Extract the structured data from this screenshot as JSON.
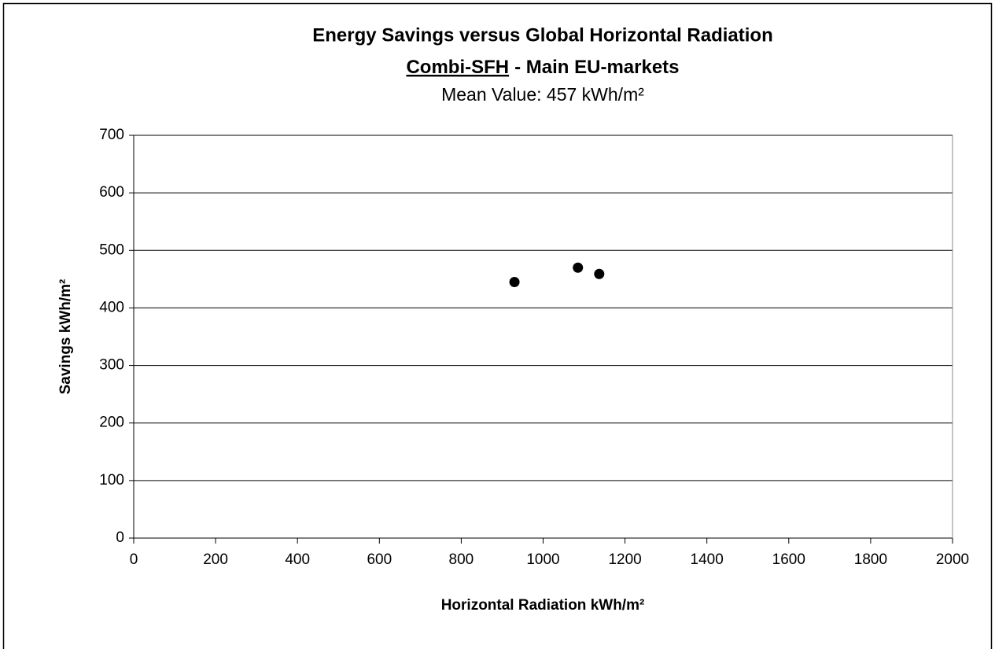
{
  "chart_data": {
    "type": "scatter",
    "title": "Energy Savings versus Global Horizontal Radiation",
    "subtitle_underlined": "Combi-SFH",
    "subtitle_rest": "- Main EU-markets",
    "note": "Mean Value: 457 kWh/m²",
    "x_label": "Horizontal Radiation kWh/m²",
    "y_label": "Savings kWh/m²",
    "series": [
      {
        "color": "#000000",
        "x": [
          930,
          1085,
          1137
        ],
        "values": [
          445,
          470,
          459
        ]
      }
    ],
    "xlim": [
      0,
      2000
    ],
    "xticks": [
      0,
      200,
      400,
      600,
      800,
      1000,
      1200,
      1400,
      1600,
      1800,
      2000
    ],
    "ylim": [
      0,
      700
    ],
    "yticks": [
      0,
      100,
      200,
      300,
      400,
      500,
      600,
      700
    ],
    "grid": true
  }
}
